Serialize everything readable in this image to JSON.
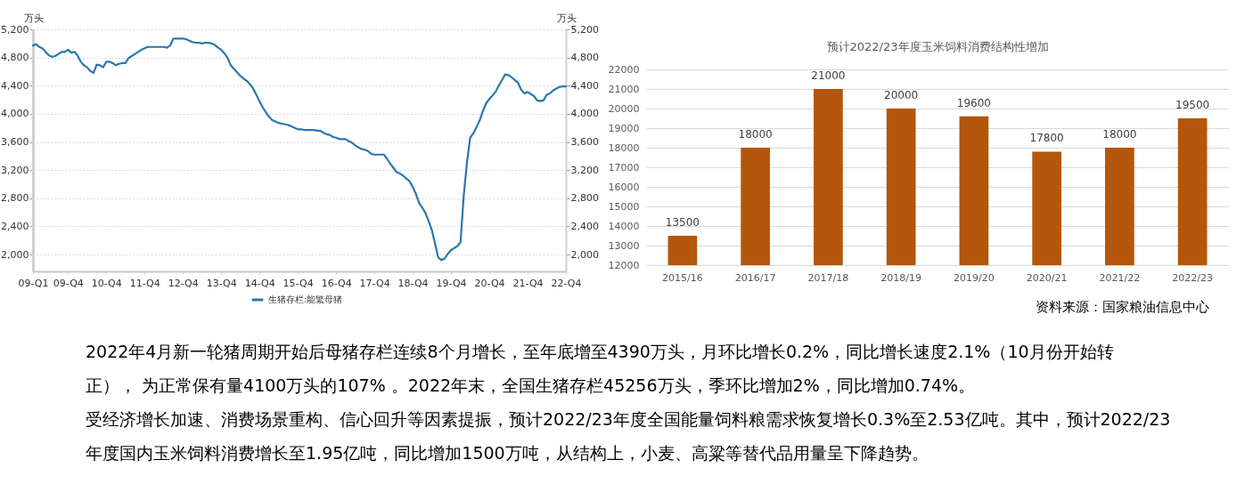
{
  "chart_data": [
    {
      "type": "line",
      "ylabel": "万头",
      "y2label": "万头",
      "grid": "y",
      "legend": "bottom",
      "x": [
        "2009-01",
        "2009-02",
        "2009-03",
        "2009-04",
        "2009-05",
        "2009-06",
        "2009-07",
        "2009-08",
        "2009-09",
        "2009-10",
        "2009-11",
        "2009-12",
        "2010-01",
        "2010-02",
        "2010-03",
        "2010-04",
        "2010-05",
        "2010-06",
        "2010-07",
        "2010-08",
        "2010-09",
        "2010-10",
        "2010-11",
        "2010-12",
        "2011-01",
        "2011-02",
        "2011-03",
        "2011-04",
        "2011-05",
        "2011-06",
        "2011-07",
        "2011-08",
        "2011-09",
        "2011-10",
        "2011-11",
        "2011-12",
        "2012-01",
        "2012-02",
        "2012-03",
        "2012-04",
        "2012-05",
        "2012-06",
        "2012-07",
        "2012-08",
        "2012-09",
        "2012-10",
        "2012-11",
        "2012-12",
        "2013-01",
        "2013-02",
        "2013-03",
        "2013-04",
        "2013-05",
        "2013-06",
        "2013-07",
        "2013-08",
        "2013-09",
        "2013-10",
        "2013-11",
        "2013-12",
        "2014-01",
        "2014-02",
        "2014-03",
        "2014-04",
        "2014-05",
        "2014-06",
        "2014-07",
        "2014-08",
        "2014-09",
        "2014-10",
        "2014-11",
        "2014-12",
        "2015-01",
        "2015-02",
        "2015-03",
        "2015-04",
        "2015-05",
        "2015-06",
        "2015-07",
        "2015-08",
        "2015-09",
        "2015-10",
        "2015-11",
        "2015-12",
        "2016-01",
        "2016-02",
        "2016-03",
        "2016-04",
        "2016-05",
        "2016-06",
        "2016-07",
        "2016-08",
        "2016-09",
        "2016-10",
        "2016-11",
        "2016-12",
        "2017-01",
        "2017-02",
        "2017-03",
        "2017-04",
        "2017-05",
        "2017-06",
        "2017-07",
        "2017-08",
        "2017-09",
        "2017-10",
        "2017-11",
        "2017-12",
        "2018-01",
        "2018-02",
        "2018-03",
        "2018-04",
        "2018-05",
        "2018-06",
        "2018-07",
        "2018-08",
        "2018-09",
        "2018-10",
        "2018-11",
        "2018-12",
        "2019-01",
        "2019-02",
        "2019-03",
        "2019-04",
        "2019-05",
        "2019-06",
        "2019-07",
        "2019-08",
        "2019-09",
        "2019-10",
        "2019-11",
        "2019-12",
        "2020-01",
        "2020-02",
        "2020-03",
        "2020-04",
        "2020-05",
        "2020-06",
        "2020-07",
        "2020-08",
        "2020-09",
        "2020-10",
        "2020-11",
        "2020-12",
        "2021-01",
        "2021-02",
        "2021-03",
        "2021-04",
        "2021-05",
        "2021-06",
        "2021-07",
        "2021-08",
        "2021-09",
        "2021-10",
        "2021-11",
        "2021-12",
        "2022-01",
        "2022-02",
        "2022-03",
        "2022-04",
        "2022-05",
        "2022-06",
        "2022-07",
        "2022-08",
        "2022-09",
        "2022-10",
        "2022-11",
        "2022-12"
      ],
      "series": [
        {
          "name": "生猪存栏:能繁母猪",
          "color": "#2b78ab",
          "values": [
            4970,
            4990,
            4950,
            4930,
            4880,
            4830,
            4810,
            4820,
            4850,
            4880,
            4880,
            4910,
            4870,
            4880,
            4830,
            4740,
            4690,
            4660,
            4610,
            4580,
            4700,
            4690,
            4660,
            4740,
            4740,
            4720,
            4690,
            4710,
            4720,
            4720,
            4790,
            4820,
            4850,
            4880,
            4910,
            4930,
            4950,
            4950,
            4950,
            4950,
            4950,
            4950,
            4940,
            4970,
            5070,
            5070,
            5070,
            5070,
            5060,
            5040,
            5020,
            5010,
            5010,
            5000,
            5010,
            5010,
            5000,
            4980,
            4940,
            4910,
            4860,
            4790,
            4690,
            4640,
            4590,
            4540,
            4500,
            4470,
            4420,
            4360,
            4270,
            4180,
            4090,
            4020,
            3960,
            3910,
            3890,
            3870,
            3860,
            3850,
            3840,
            3820,
            3800,
            3780,
            3780,
            3770,
            3770,
            3770,
            3770,
            3760,
            3760,
            3730,
            3710,
            3700,
            3670,
            3660,
            3640,
            3640,
            3640,
            3610,
            3590,
            3550,
            3520,
            3500,
            3490,
            3470,
            3430,
            3420,
            3420,
            3420,
            3420,
            3360,
            3290,
            3230,
            3170,
            3150,
            3120,
            3080,
            3040,
            2960,
            2860,
            2730,
            2670,
            2590,
            2480,
            2350,
            2160,
            1960,
            1920,
            1940,
            2010,
            2060,
            2090,
            2120,
            2170,
            2840,
            3300,
            3660,
            3720,
            3810,
            3910,
            4040,
            4150,
            4210,
            4260,
            4320,
            4400,
            4480,
            4560,
            4550,
            4520,
            4480,
            4440,
            4340,
            4290,
            4310,
            4280,
            4250,
            4190,
            4180,
            4190,
            4270,
            4290,
            4330,
            4360,
            4380,
            4390,
            4390
          ]
        }
      ],
      "xlim": [
        "2009-01",
        "2022-12"
      ],
      "xticks": [
        {
          "value": "2009-01",
          "label": "09-Q1"
        },
        {
          "value": "2009-12",
          "label": "09-Q4"
        },
        {
          "value": "2010-12",
          "label": "10-Q4"
        },
        {
          "value": "2011-12",
          "label": "11-Q4"
        },
        {
          "value": "2012-12",
          "label": "12-Q4"
        },
        {
          "value": "2013-12",
          "label": "13-Q4"
        },
        {
          "value": "2014-12",
          "label": "14-Q4"
        },
        {
          "value": "2015-12",
          "label": "15-Q4"
        },
        {
          "value": "2016-12",
          "label": "16-Q4"
        },
        {
          "value": "2017-12",
          "label": "17-Q4"
        },
        {
          "value": "2018-12",
          "label": "18-Q4"
        },
        {
          "value": "2019-12",
          "label": "19-Q4"
        },
        {
          "value": "2020-12",
          "label": "20-Q4"
        },
        {
          "value": "2021-12",
          "label": "21-Q4"
        },
        {
          "value": "2022-12",
          "label": "22-Q4"
        }
      ],
      "ylim": [
        1760,
        5200
      ],
      "yticks": [
        {
          "value": 2000,
          "label": "2,000"
        },
        {
          "value": 2400,
          "label": "2,400"
        },
        {
          "value": 2800,
          "label": "2,800"
        },
        {
          "value": 3200,
          "label": "3,200"
        },
        {
          "value": 3600,
          "label": "3,600"
        },
        {
          "value": 4000,
          "label": "4,000"
        },
        {
          "value": 4400,
          "label": "4,400"
        },
        {
          "value": 4800,
          "label": "4,800"
        },
        {
          "value": 5200,
          "label": "5,200"
        }
      ],
      "y2lim": [
        1760,
        5200
      ],
      "y2ticks": [
        {
          "value": 2000,
          "label": "2,000"
        },
        {
          "value": 2400,
          "label": "2,400"
        },
        {
          "value": 2800,
          "label": "2,800"
        },
        {
          "value": 3200,
          "label": "3,200"
        },
        {
          "value": 3600,
          "label": "3,600"
        },
        {
          "value": 4000,
          "label": "4,000"
        },
        {
          "value": 4400,
          "label": "4,400"
        },
        {
          "value": 4800,
          "label": "4,800"
        },
        {
          "value": 5200,
          "label": "5,200"
        }
      ]
    },
    {
      "type": "bar",
      "title": "预计2022/23年度玉米饲料消费结构性增加",
      "categories": [
        "2015/16",
        "2016/17",
        "2017/18",
        "2018/19",
        "2019/20",
        "2020/21",
        "2021/22",
        "2022/23"
      ],
      "values": [
        13500,
        18000,
        21000,
        20000,
        19600,
        17800,
        18000,
        19500
      ],
      "color": "#b4560b",
      "ylim": [
        12000,
        22000
      ],
      "yticks": [
        12000,
        13000,
        14000,
        15000,
        16000,
        17000,
        18000,
        19000,
        20000,
        21000,
        22000
      ],
      "grid": "y",
      "data_labels": true,
      "annotations": [
        "资料来源：国家粮油信息中心"
      ]
    },
    {
      "type": "other",
      "annotations": [
        "2022年4月新一轮猪周期开始后母猪存栏连续8个月增长，至年底增至4390万头，月环比增长0.2%，同比增长速度2.1%（10月份开始转正）， 为正常保有量4100万头的107% 。2022年末，全国生猪存栏45256万头，季环比增加2%，同比增加0.74%。",
        "受经济增长加速、消费场景重构、信心回升等因素提振，预计2022/23年度全国能量饲料粮需求恢复增长0.3%至2.53亿吨。其中，预计2022/23年度国内玉米饲料消费增长至1.95亿吨，同比增加1500万吨，从结构上，小麦、高粱等替代品用量呈下降趋势。"
      ]
    }
  ]
}
